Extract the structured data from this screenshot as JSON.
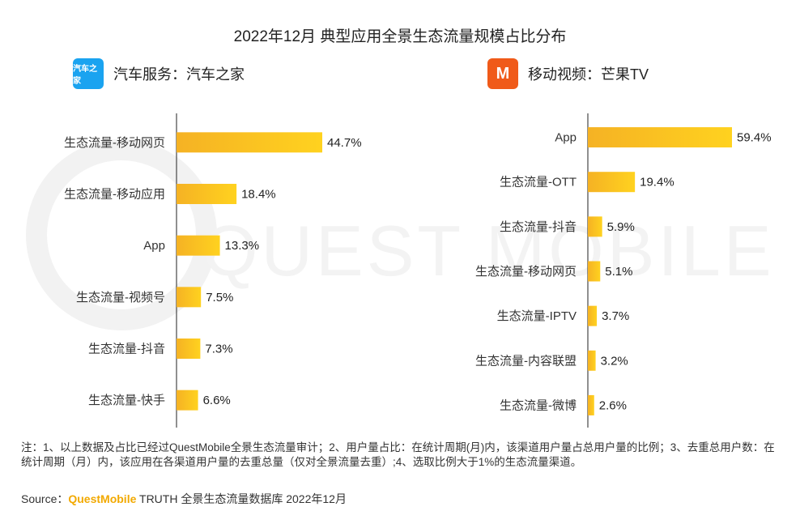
{
  "title": "2022年12月 典型应用全景生态流量规模占比分布",
  "watermark": "QUEST MOBILE",
  "colors": {
    "bar_start": "#f5b224",
    "bar_end": "#ffd21f",
    "axis": "#222222",
    "brand": "#f2a900"
  },
  "left_panel": {
    "heading": "汽车服务：汽车之家",
    "logo_text": "汽车之家",
    "logo_icon": "autohome-logo-icon"
  },
  "right_panel": {
    "heading": "移动视频：芒果TV",
    "logo_text": "M",
    "logo_icon": "mangotv-logo-icon"
  },
  "chart_data": [
    {
      "type": "bar",
      "orientation": "horizontal",
      "categories": [
        "生态流量-移动网页",
        "生态流量-移动应用",
        "App",
        "生态流量-视频号",
        "生态流量-抖音",
        "生态流量-快手"
      ],
      "values": [
        44.7,
        18.4,
        13.3,
        7.5,
        7.3,
        6.6
      ],
      "value_labels": [
        "44.7%",
        "18.4%",
        "13.3%",
        "7.5%",
        "7.3%",
        "6.6%"
      ],
      "unit": "%"
    },
    {
      "type": "bar",
      "orientation": "horizontal",
      "categories": [
        "App",
        "生态流量-OTT",
        "生态流量-抖音",
        "生态流量-移动网页",
        "生态流量-IPTV",
        "生态流量-内容联盟",
        "生态流量-微博"
      ],
      "values": [
        59.4,
        19.4,
        5.9,
        5.1,
        3.7,
        3.2,
        2.6
      ],
      "value_labels": [
        "59.4%",
        "19.4%",
        "5.9%",
        "5.1%",
        "3.7%",
        "3.2%",
        "2.6%"
      ],
      "unit": "%"
    }
  ],
  "footnote": "注：1、以上数据及占比已经过QuestMobile全景生态流量审计；2、用户量占比：在统计周期(月)内，该渠道用户量占总用户量的比例；3、去重总用户数：在统计周期（月）内，该应用在各渠道用户量的去重总量（仅对全景流量去重）;4、选取比例大于1%的生态流量渠道。",
  "source": {
    "label": "Source：",
    "brand": "QuestMobile",
    "text": " TRUTH 全景生态流量数据库 2022年12月"
  }
}
